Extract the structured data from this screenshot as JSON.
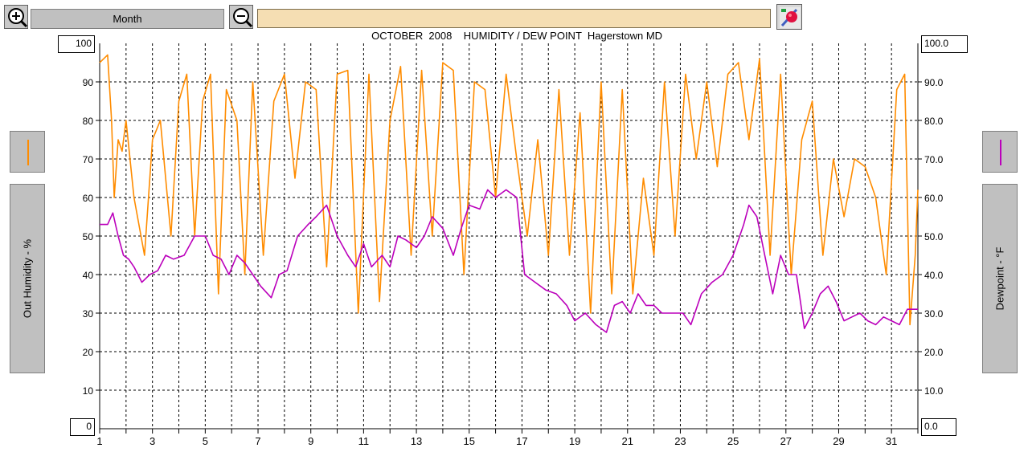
{
  "toolbar": {
    "zoom_in_icon": "magnifier-plus-icon",
    "period_label": "Month",
    "zoom_out_icon": "magnifier-minus-icon",
    "title": "OCTOBER  2008    HUMIDITY / DEW POINT  Hagerstown MD",
    "options_icon": "paint-brush-icon"
  },
  "left_axis": {
    "label": "Out Humidity - %",
    "max_box": "100",
    "min_box": "0",
    "line_color": "#ff8c00"
  },
  "right_axis": {
    "label": "Dewpoint - °F",
    "max_box": "100.0",
    "min_box": "0.0",
    "line_color": "#bb00bb"
  },
  "chart_data": {
    "type": "line",
    "xlim": [
      1,
      32
    ],
    "x_ticks": [
      1,
      3,
      5,
      7,
      9,
      11,
      13,
      15,
      17,
      19,
      21,
      23,
      25,
      27,
      29,
      31
    ],
    "y_left": {
      "ylim": [
        0,
        100
      ],
      "ticks": [
        10,
        20,
        30,
        40,
        50,
        60,
        70,
        80,
        90
      ]
    },
    "y_right": {
      "ylim": [
        0,
        100
      ],
      "ticks": [
        "10.0",
        "20.0",
        "30.0",
        "40.0",
        "50.0",
        "60.0",
        "70.0",
        "80.0",
        "90.0"
      ]
    },
    "grid": true,
    "series": [
      {
        "axis": "left",
        "color": "#ff8c00",
        "x": [
          1.0,
          1.3,
          1.45,
          1.55,
          1.7,
          1.85,
          2.0,
          2.3,
          2.7,
          3.0,
          3.3,
          3.7,
          4.0,
          4.3,
          4.6,
          4.9,
          5.2,
          5.5,
          5.8,
          6.2,
          6.5,
          6.8,
          7.2,
          7.6,
          8.0,
          8.4,
          8.8,
          9.2,
          9.6,
          10.0,
          10.4,
          10.8,
          11.2,
          11.6,
          12.0,
          12.4,
          12.8,
          13.2,
          13.6,
          14.0,
          14.4,
          14.8,
          15.2,
          15.6,
          16.0,
          16.4,
          16.8,
          17.2,
          17.6,
          18.0,
          18.4,
          18.8,
          19.2,
          19.6,
          20.0,
          20.4,
          20.8,
          21.2,
          21.6,
          22.0,
          22.4,
          22.8,
          23.2,
          23.6,
          24.0,
          24.4,
          24.8,
          25.2,
          25.6,
          26.0,
          26.4,
          26.8,
          27.2,
          27.6,
          28.0,
          28.4,
          28.8,
          29.2,
          29.6,
          30.0,
          30.4,
          30.8,
          31.2,
          31.5,
          31.7,
          31.9,
          32.0
        ],
        "y": [
          95,
          97,
          80,
          60,
          75,
          72,
          80,
          60,
          45,
          75,
          80,
          50,
          85,
          92,
          50,
          85,
          92,
          35,
          88,
          80,
          40,
          90,
          45,
          85,
          92,
          65,
          90,
          88,
          42,
          92,
          93,
          30,
          92,
          33,
          80,
          94,
          45,
          93,
          50,
          95,
          93,
          40,
          90,
          88,
          60,
          92,
          70,
          50,
          75,
          45,
          88,
          45,
          82,
          30,
          90,
          35,
          88,
          35,
          65,
          45,
          90,
          50,
          92,
          70,
          90,
          68,
          92,
          95,
          75,
          96,
          45,
          92,
          40,
          75,
          85,
          45,
          70,
          55,
          70,
          68,
          60,
          40,
          88,
          92,
          27,
          45,
          62
        ]
      },
      {
        "axis": "right",
        "color": "#bb00bb",
        "x": [
          1.0,
          1.3,
          1.5,
          1.7,
          1.9,
          2.1,
          2.3,
          2.6,
          2.9,
          3.2,
          3.5,
          3.8,
          4.2,
          4.6,
          5.0,
          5.3,
          5.6,
          5.9,
          6.2,
          6.5,
          6.8,
          7.1,
          7.5,
          7.8,
          8.1,
          8.5,
          8.9,
          9.2,
          9.6,
          10.0,
          10.4,
          10.7,
          11.0,
          11.3,
          11.7,
          12.0,
          12.3,
          12.6,
          13.0,
          13.3,
          13.6,
          14.0,
          14.4,
          14.7,
          15.0,
          15.4,
          15.7,
          16.0,
          16.4,
          16.8,
          17.1,
          17.5,
          17.9,
          18.3,
          18.7,
          19.0,
          19.4,
          19.8,
          20.2,
          20.5,
          20.8,
          21.1,
          21.4,
          21.7,
          22.0,
          22.3,
          22.7,
          23.1,
          23.4,
          23.8,
          24.2,
          24.6,
          25.0,
          25.4,
          25.6,
          25.9,
          26.2,
          26.5,
          26.8,
          27.1,
          27.4,
          27.7,
          28.0,
          28.3,
          28.6,
          28.9,
          29.2,
          29.5,
          29.8,
          30.1,
          30.4,
          30.7,
          31.0,
          31.3,
          31.6,
          32.0
        ],
        "y": [
          53,
          53,
          56,
          50,
          45,
          44,
          42,
          38,
          40,
          41,
          45,
          44,
          45,
          50,
          50,
          45,
          44,
          40,
          45,
          43,
          40,
          37,
          34,
          40,
          41,
          50,
          53,
          55,
          58,
          50,
          45,
          42,
          48,
          42,
          45,
          42,
          50,
          49,
          47,
          50,
          55,
          52,
          45,
          52,
          58,
          57,
          62,
          60,
          62,
          60,
          40,
          38,
          36,
          35,
          32,
          28,
          30,
          27,
          25,
          32,
          33,
          30,
          35,
          32,
          32,
          30,
          30,
          30,
          27,
          35,
          38,
          40,
          45,
          53,
          58,
          55,
          45,
          35,
          45,
          40,
          40,
          26,
          30,
          35,
          37,
          33,
          28,
          29,
          30,
          28,
          27,
          29,
          28,
          27,
          31,
          31
        ]
      }
    ]
  }
}
